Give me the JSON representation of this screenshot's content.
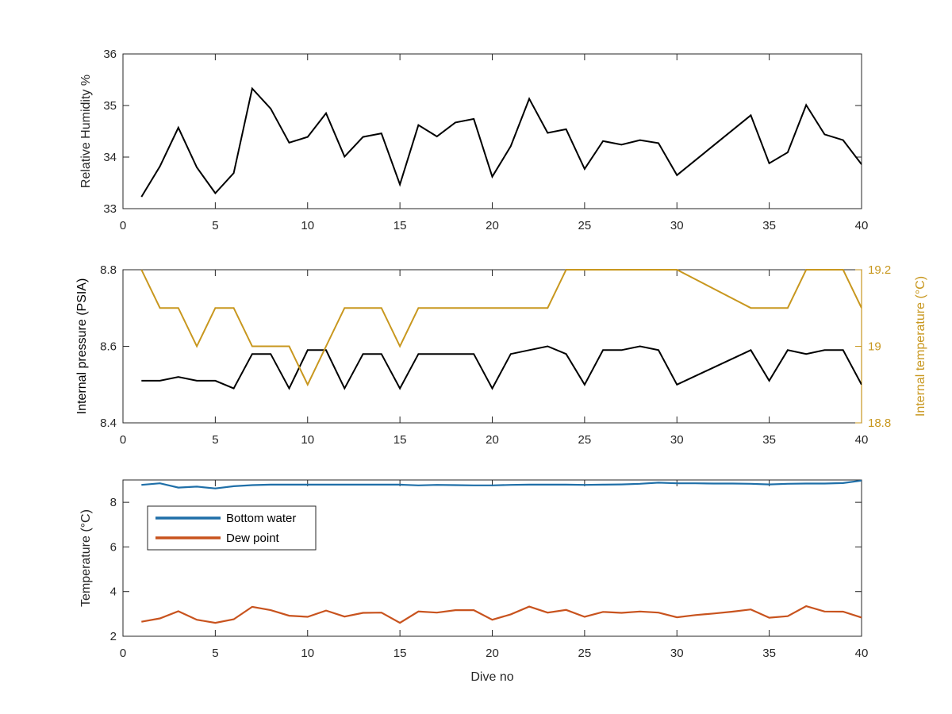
{
  "chart_data": [
    {
      "type": "line",
      "title": "",
      "xlabel": "",
      "ylabel": "Relative Humidity %",
      "xlim": [
        0,
        40
      ],
      "ylim": [
        33,
        36
      ],
      "x_ticks": [
        0,
        5,
        10,
        15,
        20,
        25,
        30,
        35,
        40
      ],
      "y_ticks": [
        33,
        34,
        35,
        36
      ],
      "grid": false,
      "series": [
        {
          "color": "#000000",
          "x": [
            1,
            2,
            3,
            4,
            5,
            6,
            7,
            8,
            9,
            10,
            11,
            12,
            13,
            14,
            15,
            16,
            17,
            18,
            19,
            20,
            21,
            22,
            23,
            24,
            25,
            26,
            27,
            28,
            29,
            30,
            34,
            35,
            36,
            37,
            38,
            39,
            40
          ],
          "values": [
            33.23,
            33.82,
            34.57,
            33.8,
            33.3,
            33.69,
            35.33,
            34.94,
            34.28,
            34.39,
            34.85,
            34.01,
            34.39,
            34.46,
            33.47,
            34.62,
            34.4,
            34.67,
            34.74,
            33.62,
            34.21,
            35.13,
            34.47,
            34.54,
            33.77,
            34.31,
            34.24,
            34.33,
            34.27,
            33.65,
            34.81,
            33.88,
            34.09,
            35.01,
            34.44,
            34.33,
            33.86
          ]
        }
      ]
    },
    {
      "type": "line",
      "title": "",
      "xlabel": "",
      "ylabel": "Internal pressure (PSIA)",
      "ylabel_right": "Internal temperature (°C)",
      "xlim": [
        0,
        40
      ],
      "ylim": [
        8.4,
        8.8
      ],
      "ylim_right": [
        18.8,
        19.2
      ],
      "x_ticks": [
        0,
        5,
        10,
        15,
        20,
        25,
        30,
        35,
        40
      ],
      "y_ticks": [
        "8.4",
        "8.6",
        "8.8"
      ],
      "y_ticks_right": [
        "18.8",
        "19",
        "19.2"
      ],
      "grid": false,
      "series": [
        {
          "axis": "left",
          "color": "#000000",
          "x": [
            1,
            2,
            3,
            4,
            5,
            6,
            7,
            8,
            9,
            10,
            11,
            12,
            13,
            14,
            15,
            16,
            17,
            18,
            19,
            20,
            21,
            22,
            23,
            24,
            25,
            26,
            27,
            28,
            29,
            30,
            34,
            35,
            36,
            37,
            38,
            39,
            40
          ],
          "values": [
            8.51,
            8.51,
            8.52,
            8.51,
            8.51,
            8.49,
            8.58,
            8.58,
            8.49,
            8.59,
            8.59,
            8.49,
            8.58,
            8.58,
            8.49,
            8.58,
            8.58,
            8.58,
            8.58,
            8.49,
            8.58,
            8.59,
            8.6,
            8.58,
            8.5,
            8.59,
            8.59,
            8.6,
            8.59,
            8.5,
            8.59,
            8.51,
            8.59,
            8.58,
            8.59,
            8.59,
            8.5
          ]
        },
        {
          "axis": "right",
          "color": "#c8971e",
          "x": [
            1,
            2,
            3,
            4,
            5,
            6,
            7,
            8,
            9,
            10,
            11,
            12,
            13,
            14,
            15,
            16,
            17,
            18,
            19,
            20,
            21,
            22,
            23,
            24,
            25,
            26,
            27,
            28,
            29,
            30,
            34,
            35,
            36,
            37,
            38,
            39,
            40
          ],
          "values": [
            19.2,
            19.1,
            19.1,
            19.0,
            19.1,
            19.1,
            19.0,
            19.0,
            19.0,
            18.9,
            19.0,
            19.1,
            19.1,
            19.1,
            19.0,
            19.1,
            19.1,
            19.1,
            19.1,
            19.1,
            19.1,
            19.1,
            19.1,
            19.2,
            19.2,
            19.2,
            19.2,
            19.2,
            19.2,
            19.2,
            19.1,
            19.1,
            19.1,
            19.2,
            19.2,
            19.2,
            19.1
          ]
        }
      ]
    },
    {
      "type": "line",
      "title": "",
      "xlabel": "Dive no",
      "ylabel": "Temperature (°C)",
      "xlim": [
        0,
        40
      ],
      "ylim": [
        2,
        9
      ],
      "x_ticks": [
        0,
        5,
        10,
        15,
        20,
        25,
        30,
        35,
        40
      ],
      "y_ticks": [
        2,
        4,
        6,
        8
      ],
      "grid": false,
      "legend": "top-left",
      "series": [
        {
          "name": "Bottom water",
          "color": "#1f6fa8",
          "x": [
            1,
            2,
            3,
            4,
            5,
            6,
            7,
            8,
            9,
            10,
            11,
            12,
            13,
            14,
            15,
            16,
            17,
            18,
            19,
            20,
            21,
            22,
            23,
            24,
            25,
            26,
            27,
            28,
            29,
            30,
            31,
            32,
            33,
            34,
            35,
            36,
            37,
            38,
            39,
            40
          ],
          "values": [
            8.78,
            8.85,
            8.66,
            8.7,
            8.62,
            8.72,
            8.77,
            8.79,
            8.79,
            8.79,
            8.79,
            8.79,
            8.79,
            8.79,
            8.79,
            8.76,
            8.78,
            8.77,
            8.76,
            8.76,
            8.78,
            8.79,
            8.79,
            8.79,
            8.78,
            8.79,
            8.8,
            8.83,
            8.88,
            8.85,
            8.85,
            8.84,
            8.84,
            8.83,
            8.8,
            8.83,
            8.84,
            8.84,
            8.86,
            8.97
          ]
        },
        {
          "name": "Dew point",
          "color": "#c8531e",
          "x": [
            1,
            2,
            3,
            4,
            5,
            6,
            7,
            8,
            9,
            10,
            11,
            12,
            13,
            14,
            15,
            16,
            17,
            18,
            19,
            20,
            21,
            22,
            23,
            24,
            25,
            26,
            27,
            28,
            29,
            30,
            31,
            32,
            33,
            34,
            35,
            36,
            37,
            38,
            39,
            40
          ],
          "values": [
            2.65,
            2.8,
            3.12,
            2.74,
            2.6,
            2.76,
            3.32,
            3.17,
            2.92,
            2.87,
            3.15,
            2.88,
            3.05,
            3.06,
            2.6,
            3.11,
            3.06,
            3.17,
            3.17,
            2.74,
            2.98,
            3.33,
            3.06,
            3.18,
            2.87,
            3.09,
            3.05,
            3.11,
            3.06,
            2.85,
            2.95,
            3.02,
            3.1,
            3.2,
            2.83,
            2.9,
            3.35,
            3.11,
            3.1,
            2.84
          ]
        }
      ]
    }
  ]
}
